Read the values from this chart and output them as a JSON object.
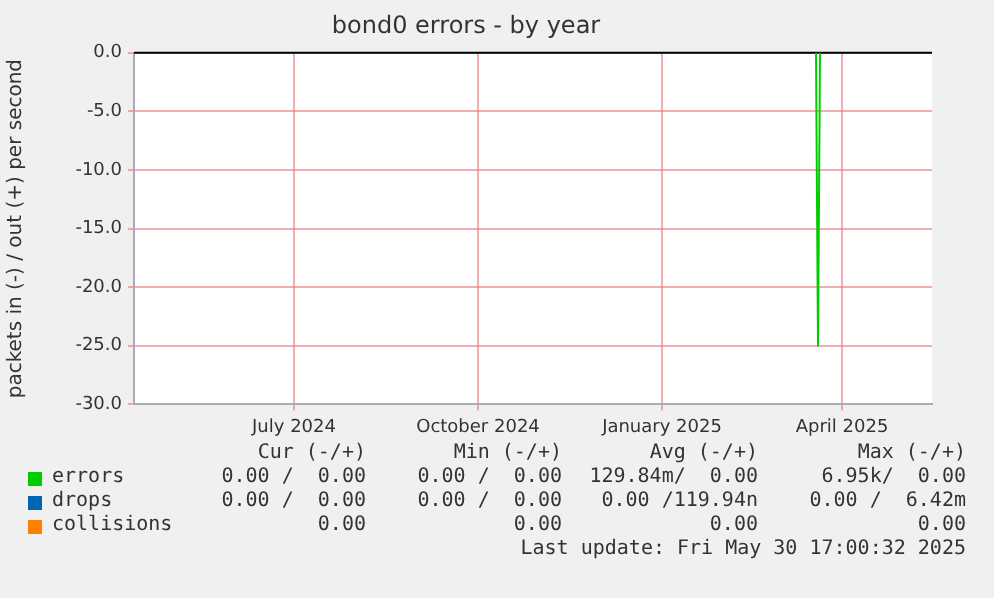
{
  "chart_data": {
    "type": "line",
    "title": "bond0 errors - by year",
    "ylabel": "packets in (-) / out (+) per second",
    "xlim": [
      "2024-04-12",
      "2025-05-16"
    ],
    "xticks": [
      {
        "value": "2024-07-01",
        "label": "July 2024"
      },
      {
        "value": "2024-10-01",
        "label": "October 2024"
      },
      {
        "value": "2025-01-01",
        "label": "January 2025"
      },
      {
        "value": "2025-04-01",
        "label": "April 2025"
      }
    ],
    "ylim": [
      -30,
      0
    ],
    "yticks": [
      {
        "value": -30,
        "label": "-30.0"
      },
      {
        "value": -25,
        "label": "-25.0"
      },
      {
        "value": -20,
        "label": "-20.0"
      },
      {
        "value": -15,
        "label": "-15.0"
      },
      {
        "value": -10,
        "label": "-10.0"
      },
      {
        "value": -5,
        "label": "-5.0"
      },
      {
        "value": 0,
        "label": "0.0"
      }
    ],
    "series": [
      {
        "name": "errors",
        "color": "#00cc00",
        "x": [
          "2025-03-19",
          "2025-03-20",
          "2025-03-21"
        ],
        "values": [
          0,
          -25,
          0
        ]
      },
      {
        "name": "drops",
        "color": "#0066b3"
      },
      {
        "name": "collisions",
        "color": "#ff8000"
      }
    ],
    "ref_lines": [
      {
        "axis": "y",
        "value": 0,
        "color": "#000000"
      }
    ],
    "grid": true,
    "legend": "bottom",
    "marker": "none",
    "line_style": "solid",
    "annotations": [
      "Cur (-/+)",
      "Min (-/+)",
      "Avg (-/+)",
      "Max (-/+)",
      "0.00 /  0.00",
      "0.00 /  0.00",
      "129.84m/  0.00",
      "6.95k/  0.00",
      "0.00 /  0.00",
      "0.00 /  0.00",
      "0.00 /119.94n",
      "0.00 /  6.42m",
      "0.00",
      "0.00",
      "0.00",
      "0.00",
      "Last update: Fri May 30 17:00:32 2025"
    ]
  }
}
